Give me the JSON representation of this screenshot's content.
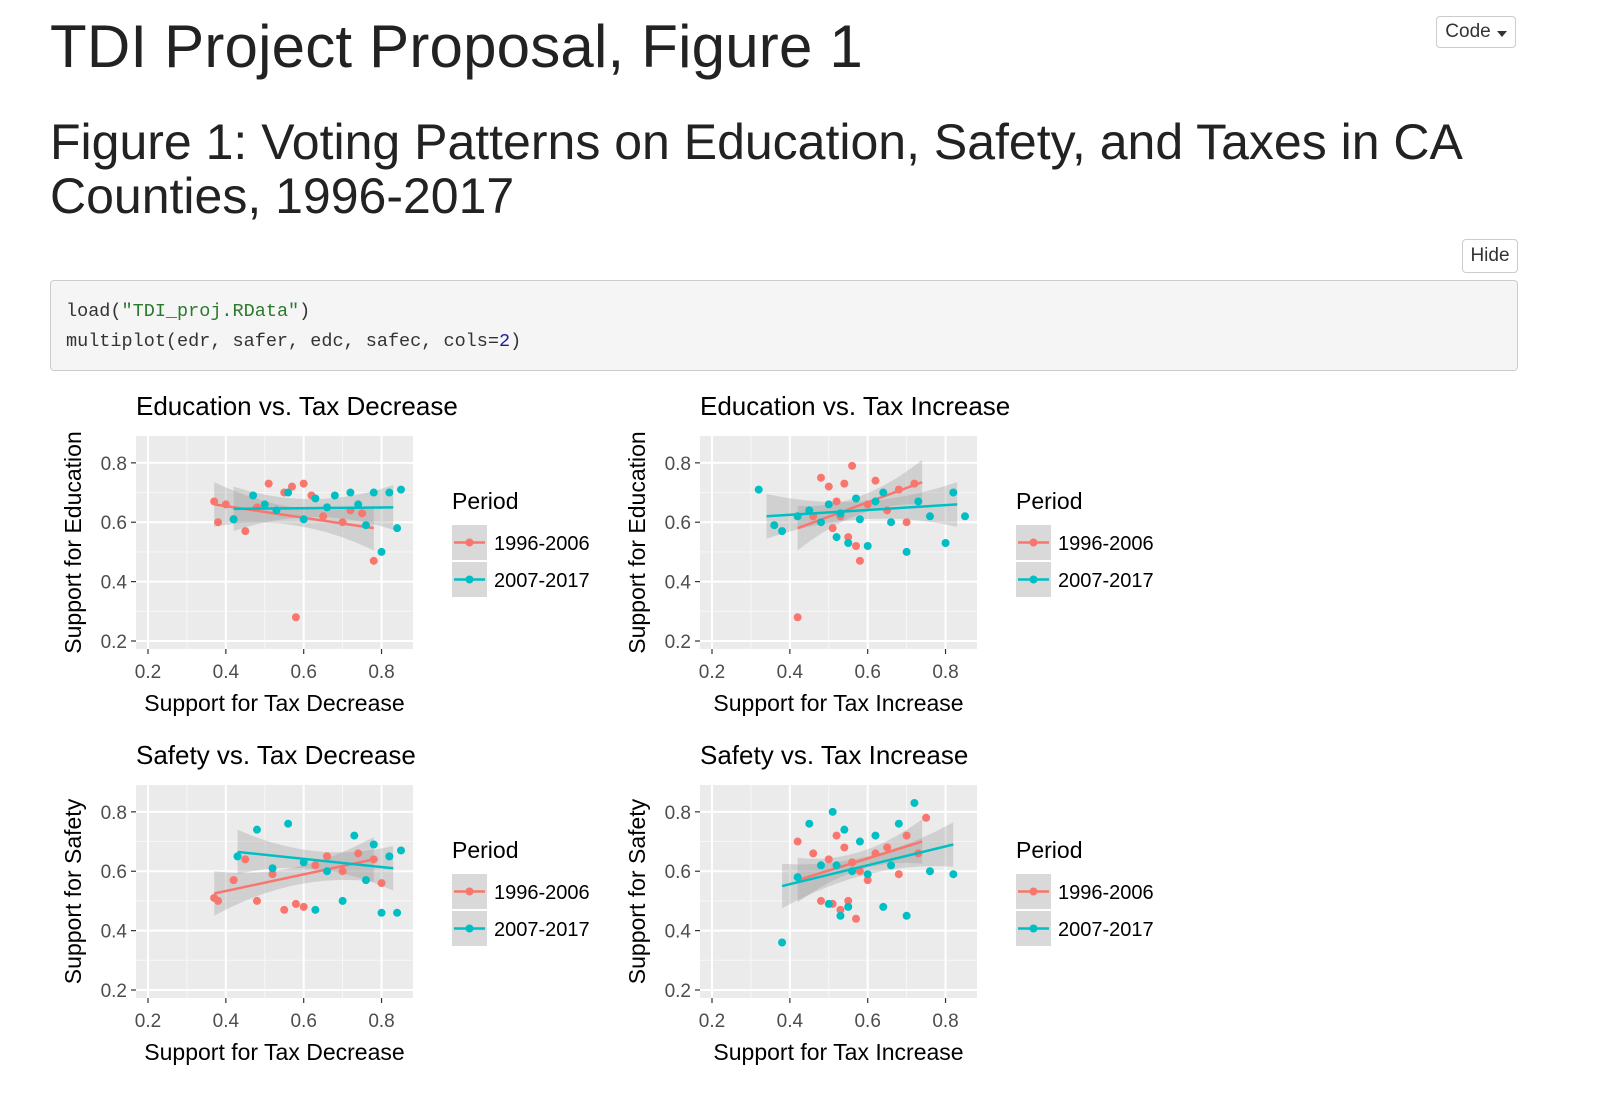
{
  "page": {
    "title": "TDI Project Proposal, Figure 1",
    "code_button": "Code",
    "figure_heading": "Figure 1: Voting Patterns on Education, Safety, and Taxes in CA Counties, 1996-2017",
    "hide_button": "Hide",
    "code": {
      "line1_fn": "load(",
      "line1_str": "\"TDI_proj.RData\"",
      "line1_end": ")",
      "line2_pre": "multiplot(edr, safer, edc, safec, cols=",
      "line2_num": "2",
      "line2_end": ")"
    }
  },
  "colors": {
    "series_1996_2006": "#F8766D",
    "series_2007_2017": "#00BFC4",
    "panel_bg": "#EBEBEB",
    "ribbon": "#999999"
  },
  "chart_data": [
    {
      "type": "scatter",
      "title": "Education vs. Tax Decrease",
      "xlabel": "Support for Tax Decrease",
      "ylabel": "Support for Education",
      "xlim": [
        0.2,
        0.85
      ],
      "ylim": [
        0.2,
        0.85
      ],
      "xticks": [
        "0.2",
        "0.4",
        "0.6",
        "0.8"
      ],
      "yticks": [
        "0.2",
        "0.4",
        "0.6",
        "0.8"
      ],
      "legend_title": "Period",
      "series": [
        {
          "name": "1996-2006",
          "x": [
            0.37,
            0.38,
            0.4,
            0.42,
            0.45,
            0.48,
            0.51,
            0.55,
            0.57,
            0.58,
            0.6,
            0.62,
            0.65,
            0.7,
            0.72,
            0.75,
            0.78
          ],
          "y": [
            0.67,
            0.6,
            0.66,
            0.61,
            0.57,
            0.65,
            0.73,
            0.7,
            0.72,
            0.28,
            0.73,
            0.69,
            0.62,
            0.6,
            0.64,
            0.63,
            0.47
          ],
          "fit": [
            [
              0.37,
              0.66
            ],
            [
              0.78,
              0.58
            ]
          ]
        },
        {
          "name": "2007-2017",
          "x": [
            0.42,
            0.47,
            0.5,
            0.53,
            0.56,
            0.6,
            0.63,
            0.66,
            0.68,
            0.72,
            0.74,
            0.76,
            0.78,
            0.8,
            0.82,
            0.84,
            0.85
          ],
          "y": [
            0.61,
            0.69,
            0.66,
            0.64,
            0.7,
            0.61,
            0.68,
            0.65,
            0.69,
            0.7,
            0.66,
            0.59,
            0.7,
            0.5,
            0.7,
            0.58,
            0.71
          ],
          "fit": [
            [
              0.42,
              0.645
            ],
            [
              0.83,
              0.65
            ]
          ]
        }
      ]
    },
    {
      "type": "scatter",
      "title": "Education vs. Tax Increase",
      "xlabel": "Support for Tax Increase",
      "ylabel": "Support for Education",
      "xlim": [
        0.2,
        0.85
      ],
      "ylim": [
        0.2,
        0.85
      ],
      "xticks": [
        "0.2",
        "0.4",
        "0.6",
        "0.8"
      ],
      "yticks": [
        "0.2",
        "0.4",
        "0.6",
        "0.8"
      ],
      "legend_title": "Period",
      "series": [
        {
          "name": "1996-2006",
          "x": [
            0.42,
            0.46,
            0.48,
            0.5,
            0.51,
            0.52,
            0.53,
            0.54,
            0.55,
            0.56,
            0.57,
            0.58,
            0.6,
            0.62,
            0.65,
            0.68,
            0.7,
            0.72
          ],
          "y": [
            0.28,
            0.62,
            0.75,
            0.72,
            0.58,
            0.67,
            0.62,
            0.73,
            0.55,
            0.79,
            0.52,
            0.47,
            0.66,
            0.74,
            0.64,
            0.71,
            0.6,
            0.73
          ],
          "fit": [
            [
              0.42,
              0.58
            ],
            [
              0.74,
              0.735
            ]
          ]
        },
        {
          "name": "2007-2017",
          "x": [
            0.32,
            0.36,
            0.38,
            0.42,
            0.45,
            0.48,
            0.5,
            0.52,
            0.53,
            0.55,
            0.57,
            0.58,
            0.6,
            0.62,
            0.64,
            0.66,
            0.7,
            0.73,
            0.76,
            0.8,
            0.82,
            0.85
          ],
          "y": [
            0.71,
            0.59,
            0.57,
            0.62,
            0.64,
            0.6,
            0.66,
            0.55,
            0.63,
            0.53,
            0.68,
            0.61,
            0.52,
            0.67,
            0.7,
            0.6,
            0.5,
            0.67,
            0.62,
            0.53,
            0.7,
            0.62
          ],
          "fit": [
            [
              0.34,
              0.62
            ],
            [
              0.83,
              0.66
            ]
          ]
        }
      ]
    },
    {
      "type": "scatter",
      "title": "Safety vs. Tax Decrease",
      "xlabel": "Support for Tax Decrease",
      "ylabel": "Support for Safety",
      "xlim": [
        0.2,
        0.85
      ],
      "ylim": [
        0.2,
        0.85
      ],
      "xticks": [
        "0.2",
        "0.4",
        "0.6",
        "0.8"
      ],
      "yticks": [
        "0.2",
        "0.4",
        "0.6",
        "0.8"
      ],
      "legend_title": "Period",
      "series": [
        {
          "name": "1996-2006",
          "x": [
            0.37,
            0.38,
            0.42,
            0.45,
            0.48,
            0.52,
            0.55,
            0.58,
            0.6,
            0.63,
            0.66,
            0.7,
            0.74,
            0.78,
            0.8
          ],
          "y": [
            0.51,
            0.5,
            0.57,
            0.64,
            0.5,
            0.59,
            0.47,
            0.49,
            0.48,
            0.62,
            0.65,
            0.6,
            0.66,
            0.64,
            0.56
          ],
          "fit": [
            [
              0.37,
              0.525
            ],
            [
              0.78,
              0.64
            ]
          ]
        },
        {
          "name": "2007-2017",
          "x": [
            0.43,
            0.48,
            0.52,
            0.56,
            0.6,
            0.63,
            0.66,
            0.7,
            0.73,
            0.76,
            0.78,
            0.8,
            0.82,
            0.84,
            0.85
          ],
          "y": [
            0.65,
            0.74,
            0.61,
            0.76,
            0.63,
            0.47,
            0.6,
            0.5,
            0.72,
            0.57,
            0.69,
            0.46,
            0.65,
            0.46,
            0.67
          ],
          "fit": [
            [
              0.43,
              0.665
            ],
            [
              0.83,
              0.61
            ]
          ]
        }
      ]
    },
    {
      "type": "scatter",
      "title": "Safety vs. Tax Increase",
      "xlabel": "Support for Tax Increase",
      "ylabel": "Support for Safety",
      "xlim": [
        0.2,
        0.85
      ],
      "ylim": [
        0.2,
        0.85
      ],
      "xticks": [
        "0.2",
        "0.4",
        "0.6",
        "0.8"
      ],
      "yticks": [
        "0.2",
        "0.4",
        "0.6",
        "0.8"
      ],
      "legend_title": "Period",
      "series": [
        {
          "name": "1996-2006",
          "x": [
            0.42,
            0.46,
            0.48,
            0.5,
            0.51,
            0.52,
            0.53,
            0.54,
            0.55,
            0.56,
            0.57,
            0.58,
            0.6,
            0.62,
            0.65,
            0.68,
            0.7,
            0.73,
            0.75
          ],
          "y": [
            0.7,
            0.66,
            0.5,
            0.64,
            0.49,
            0.72,
            0.47,
            0.68,
            0.5,
            0.63,
            0.44,
            0.6,
            0.57,
            0.66,
            0.68,
            0.59,
            0.72,
            0.66,
            0.78
          ],
          "fit": [
            [
              0.42,
              0.57
            ],
            [
              0.74,
              0.7
            ]
          ]
        },
        {
          "name": "2007-2017",
          "x": [
            0.38,
            0.42,
            0.45,
            0.48,
            0.5,
            0.51,
            0.52,
            0.53,
            0.54,
            0.55,
            0.56,
            0.58,
            0.6,
            0.62,
            0.64,
            0.66,
            0.68,
            0.7,
            0.72,
            0.76,
            0.82
          ],
          "y": [
            0.36,
            0.58,
            0.76,
            0.62,
            0.49,
            0.8,
            0.62,
            0.45,
            0.74,
            0.48,
            0.6,
            0.7,
            0.59,
            0.72,
            0.48,
            0.62,
            0.76,
            0.45,
            0.83,
            0.6,
            0.59
          ],
          "fit": [
            [
              0.38,
              0.55
            ],
            [
              0.82,
              0.69
            ]
          ]
        }
      ]
    }
  ]
}
